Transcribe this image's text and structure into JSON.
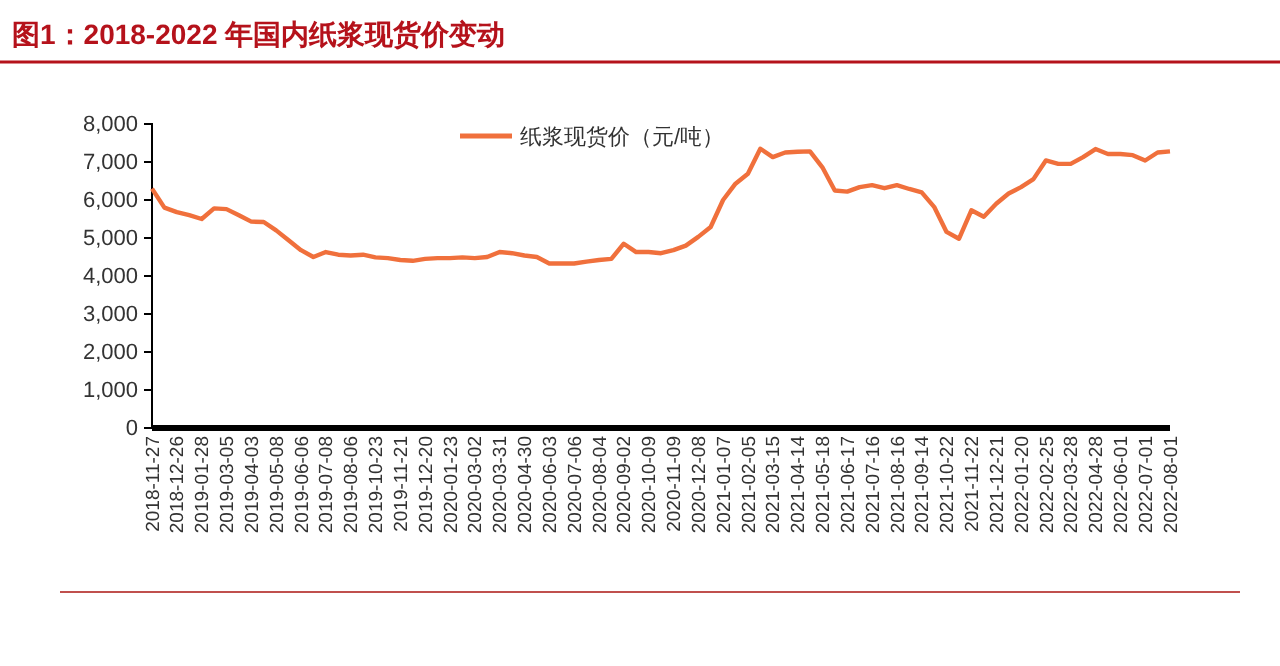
{
  "chart_data": {
    "type": "line",
    "title": "图1：2018-2022 年国内纸浆现货价变动",
    "categories": [
      "2018-11-27",
      null,
      "2018-12-26",
      null,
      "2019-01-28",
      null,
      "2019-03-05",
      null,
      "2019-04-03",
      null,
      "2019-05-08",
      null,
      "2019-06-06",
      null,
      "2019-07-08",
      null,
      "2019-08-06",
      null,
      "2019-10-23",
      null,
      "2019-11-21",
      null,
      "2019-12-20",
      null,
      "2020-01-23",
      null,
      "2020-03-02",
      null,
      "2020-03-31",
      null,
      "2020-04-30",
      null,
      "2020-06-03",
      null,
      "2020-07-06",
      null,
      "2020-08-04",
      null,
      "2020-09-02",
      null,
      "2020-10-09",
      null,
      "2020-11-09",
      null,
      "2020-12-08",
      null,
      "2021-01-07",
      null,
      "2021-02-05",
      null,
      "2021-03-15",
      null,
      "2021-04-14",
      null,
      "2021-05-18",
      null,
      "2021-06-17",
      null,
      "2021-07-16",
      null,
      "2021-08-16",
      null,
      "2021-09-14",
      null,
      "2021-10-22",
      null,
      "2021-11-22",
      null,
      "2021-12-21",
      null,
      "2022-01-20",
      null,
      "2022-02-25",
      null,
      "2022-03-28",
      null,
      "2022-04-28",
      null,
      "2022-06-01",
      null,
      "2022-07-01",
      null,
      "2022-08-01"
    ],
    "series": [
      {
        "name": "纸浆现货价（元/吨）",
        "color": "#f0703c",
        "values": [
          6300,
          5800,
          5680,
          5600,
          5500,
          5780,
          5760,
          5600,
          5430,
          5420,
          5200,
          4940,
          4680,
          4500,
          4630,
          4560,
          4540,
          4560,
          4490,
          4470,
          4420,
          4400,
          4450,
          4470,
          4470,
          4490,
          4470,
          4500,
          4630,
          4600,
          4540,
          4500,
          4330,
          4330,
          4330,
          4380,
          4420,
          4450,
          4850,
          4630,
          4630,
          4600,
          4680,
          4800,
          5030,
          5290,
          6000,
          6430,
          6690,
          7350,
          7130,
          7250,
          7270,
          7280,
          6860,
          6250,
          6220,
          6340,
          6390,
          6310,
          6390,
          6290,
          6200,
          5820,
          5160,
          4980,
          5730,
          5560,
          5900,
          6170,
          6340,
          6550,
          7040,
          6950,
          6950,
          7130,
          7340,
          7210,
          7210,
          7180,
          7040,
          7250,
          7280
        ]
      }
    ],
    "ylim": [
      0,
      8000
    ],
    "yticks": [
      {
        "value": 0,
        "label": "0"
      },
      {
        "value": 1000,
        "label": "1,000"
      },
      {
        "value": 2000,
        "label": "2,000"
      },
      {
        "value": 3000,
        "label": "3,000"
      },
      {
        "value": 4000,
        "label": "4,000"
      },
      {
        "value": 5000,
        "label": "5,000"
      },
      {
        "value": 6000,
        "label": "6,000"
      },
      {
        "value": 7000,
        "label": "7,000"
      },
      {
        "value": 8000,
        "label": "8,000"
      }
    ],
    "grid": false,
    "legend": "top",
    "marker": "none",
    "line_style": "solid"
  }
}
